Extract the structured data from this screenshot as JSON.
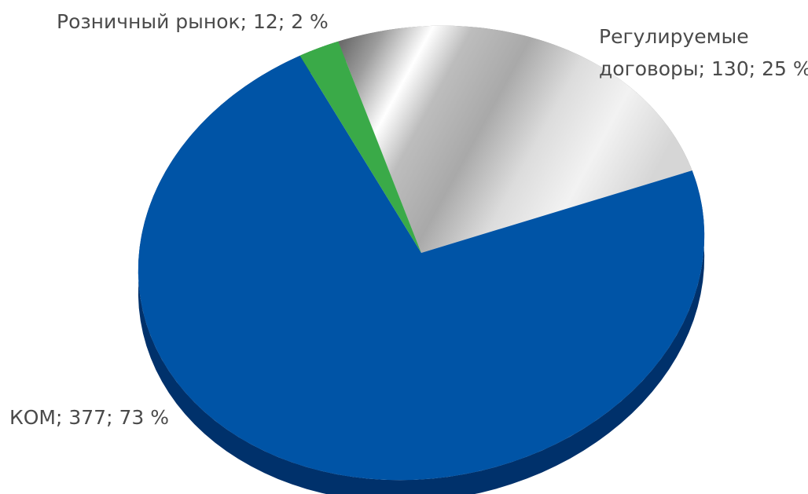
{
  "chart_data": {
    "type": "pie",
    "title": "",
    "series": [
      {
        "name": "",
        "slices": [
          {
            "label": "Регулируемые договоры",
            "value": 130,
            "percent": 25,
            "label_lines": [
              "Регулируемые",
              "договоры; 130; 25 %"
            ],
            "color": "#c8c8c8"
          },
          {
            "label": "КОМ",
            "value": 377,
            "percent": 73,
            "label_lines": [
              "КОМ; 377; 73 %"
            ],
            "color": "#0054a6"
          },
          {
            "label": "Розничный рынок",
            "value": 12,
            "percent": 2,
            "label_lines": [
              "Розничный рынок; 12; 2 %"
            ],
            "color": "#3aaa48"
          }
        ]
      }
    ],
    "style": "3d-tilted",
    "legend": "none",
    "data_labels": "outside"
  }
}
